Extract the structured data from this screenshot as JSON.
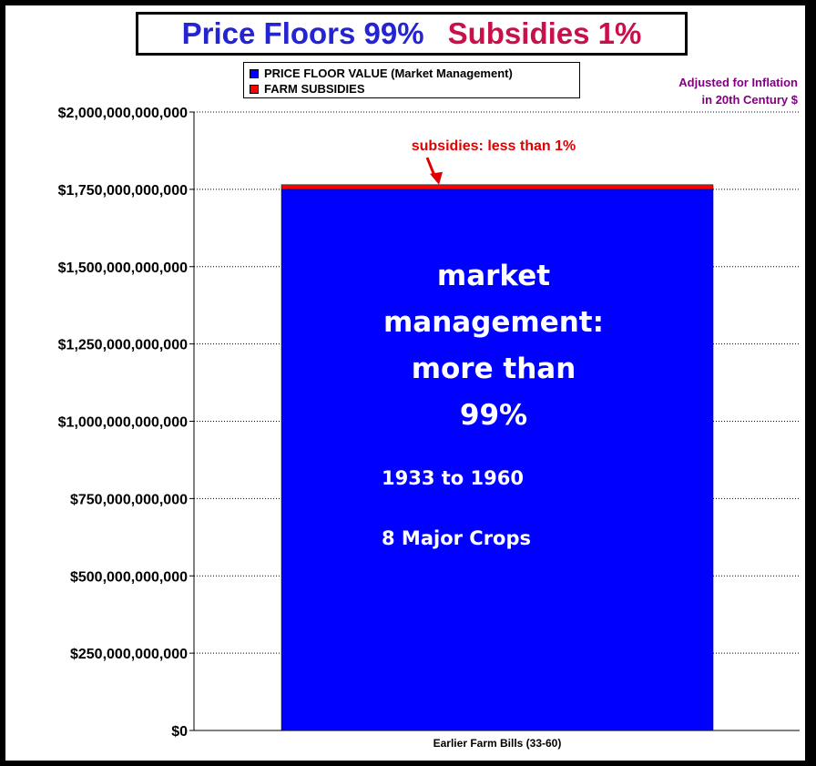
{
  "title": {
    "main": "Price Floors 99%",
    "sub": "Subsidies 1%"
  },
  "legend": [
    {
      "label": "PRICE FLOOR VALUE  (Market Management)",
      "color": "#0000ff"
    },
    {
      "label": "FARM SUBSIDIES",
      "color": "#ff0000"
    }
  ],
  "note": {
    "line1": "Adjusted for Inflation",
    "line2": "in 20th Century $"
  },
  "chart_data": {
    "type": "bar",
    "stacked": true,
    "categories": [
      "Earlier Farm Bills  (33-60)"
    ],
    "series": [
      {
        "name": "PRICE FLOOR VALUE  (Market Management)",
        "values": [
          1750000000000
        ],
        "color": "#0000ff"
      },
      {
        "name": "FARM SUBSIDIES",
        "values": [
          15000000000
        ],
        "color": "#ff0000"
      }
    ],
    "ylim": [
      0,
      2000000000000
    ],
    "yticks": [
      0,
      250000000000,
      500000000000,
      750000000000,
      1000000000000,
      1250000000000,
      1500000000000,
      1750000000000,
      2000000000000
    ],
    "ytick_labels": [
      "$0",
      "$250,000,000,000",
      "$500,000,000,000",
      "$750,000,000,000",
      "$1,000,000,000,000",
      "$1,250,000,000,000",
      "$1,500,000,000,000",
      "$1,750,000,000,000",
      "$2,000,000,000,000"
    ],
    "grid": true,
    "annotations": {
      "callout": "subsidies:  less than 1%",
      "center_lines": [
        "market",
        "management:",
        "more than",
        "99%"
      ],
      "period": "1933 to 1960",
      "crops": "8 Major Crops"
    }
  }
}
